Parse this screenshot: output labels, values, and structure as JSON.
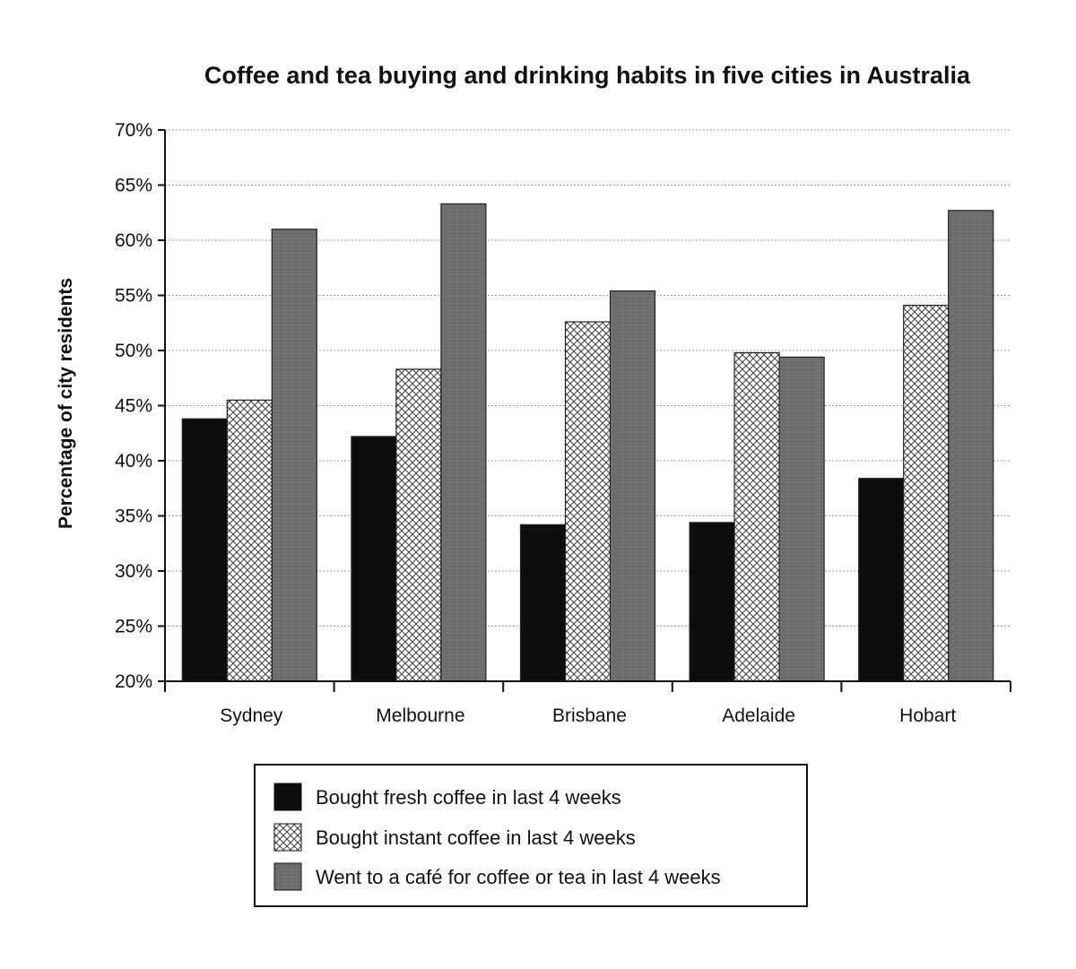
{
  "chart_data": {
    "type": "bar",
    "title": "Coffee and tea buying and drinking habits in five cities in Australia",
    "xlabel": "",
    "ylabel": "Percentage of city residents",
    "ylim": [
      20,
      70
    ],
    "ytick_step": 5,
    "ytick_labels": [
      "20%",
      "25%",
      "30%",
      "35%",
      "40%",
      "45%",
      "50%",
      "55%",
      "60%",
      "65%",
      "70%"
    ],
    "grid": true,
    "legend_position": "bottom",
    "categories": [
      "Sydney",
      "Melbourne",
      "Brisbane",
      "Adelaide",
      "Hobart"
    ],
    "series": [
      {
        "name": "Bought fresh coffee in last 4 weeks",
        "values": [
          43.8,
          42.2,
          34.2,
          34.4,
          38.4
        ],
        "fill": "solid-black",
        "color": "#0d0d0d"
      },
      {
        "name": "Bought instant coffee in last 4 weeks",
        "values": [
          45.5,
          48.3,
          52.6,
          49.8,
          54.1
        ],
        "fill": "crosshatch",
        "color": "#ffffff"
      },
      {
        "name": "Went to a café for coffee or tea in last 4 weeks",
        "values": [
          61.0,
          63.3,
          55.4,
          49.4,
          62.7
        ],
        "fill": "solid-grey",
        "color": "#6e6e6e"
      }
    ]
  }
}
